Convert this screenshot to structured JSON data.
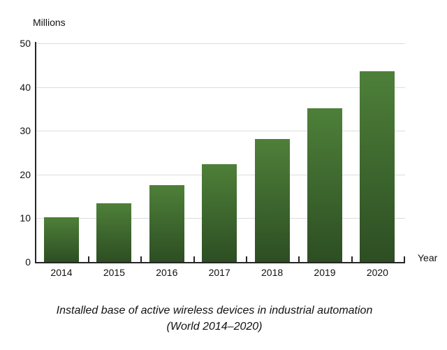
{
  "figure": {
    "y_axis_title": "Millions",
    "x_axis_title": "Year",
    "caption_line1": "Installed base of active wireless devices in industrial automation",
    "caption_line2": "(World 2014–2020)"
  },
  "colors": {
    "bar_top": "#4e8039",
    "bar_bottom": "#2d4e23",
    "gridline": "#dcdcdc",
    "axis": "#262626",
    "text": "#111111"
  },
  "chart_data": {
    "type": "bar",
    "categories": [
      "2014",
      "2015",
      "2016",
      "2017",
      "2018",
      "2019",
      "2020"
    ],
    "values": [
      10.3,
      13.5,
      17.6,
      22.4,
      28.1,
      35.1,
      43.6
    ],
    "title": "Installed base of active wireless devices in industrial automation (World 2014–2020)",
    "xlabel": "Year",
    "ylabel": "Millions",
    "ylim": [
      0,
      50
    ],
    "yticks": [
      0,
      10,
      20,
      30,
      40,
      50
    ],
    "grid": true,
    "legend": false,
    "bar_fill": "vertical gradient, lighter green at top to dark green at bottom"
  }
}
